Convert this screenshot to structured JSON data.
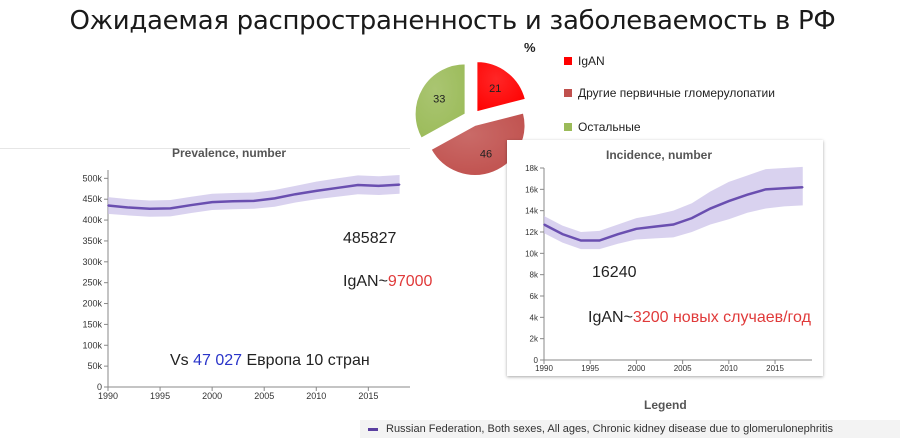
{
  "title": "Ожидаемая распространенность и заболеваемость  в РФ",
  "pie": {
    "unit_label": "%",
    "legend": [
      {
        "label": "IgAN",
        "color": "#ff0000"
      },
      {
        "label": "Другие первичные гломерулопатии",
        "color": "#c0504d"
      },
      {
        "label": "Остальные",
        "color": "#9bbb59"
      }
    ]
  },
  "annotations": {
    "prevalence_value": "485827",
    "prevalence_igan_prefix": "IgAN~",
    "prevalence_igan_value": "97000",
    "vs_prefix": "Vs ",
    "vs_value": "47 027",
    "vs_suffix": " Европа 10 стран",
    "incidence_value": "16240",
    "incidence_igan_prefix": "IgAN~",
    "incidence_igan_value": "3200 новых случаев/год"
  },
  "legend_bottom": {
    "title": "Legend",
    "series_label": "Russian Federation, Both sexes, All ages, Chronic kidney disease due to glomerulonephritis",
    "color": "#5a3fa0"
  },
  "chart_data": [
    {
      "type": "pie",
      "title": "%",
      "categories": [
        "IgAN",
        "Другие первичные гломерулопатии",
        "Остальные"
      ],
      "values": [
        21,
        46,
        33
      ],
      "colors": [
        "#ff0000",
        "#c0504d",
        "#9bbb59"
      ],
      "legend": "right"
    },
    {
      "type": "area",
      "title": "Prevalence, number",
      "x": [
        1990,
        1992,
        1994,
        1996,
        1998,
        2000,
        2002,
        2004,
        2006,
        2008,
        2010,
        2012,
        2014,
        2016,
        2018
      ],
      "y": [
        435000,
        430000,
        427000,
        428000,
        436000,
        443000,
        445000,
        446000,
        452000,
        462000,
        470000,
        477000,
        484000,
        482000,
        485000
      ],
      "upper": [
        455000,
        450000,
        447000,
        448000,
        456000,
        463000,
        465000,
        466000,
        472000,
        482000,
        492000,
        500000,
        507000,
        505000,
        508000
      ],
      "lower": [
        415000,
        411000,
        408000,
        409000,
        417000,
        424000,
        426000,
        427000,
        432000,
        442000,
        450000,
        456000,
        462000,
        460000,
        463000
      ],
      "xticks": [
        1990,
        1995,
        2000,
        2005,
        2010,
        2015
      ],
      "yticks": [
        0,
        50000,
        100000,
        150000,
        200000,
        250000,
        300000,
        350000,
        400000,
        450000,
        500000
      ],
      "ytick_labels": [
        "0",
        "50k",
        "100k",
        "150k",
        "200k",
        "250k",
        "300k",
        "350k",
        "400k",
        "450k",
        "500k"
      ],
      "xlim": [
        1990,
        2019
      ],
      "ylim": [
        0,
        520000
      ],
      "color": "#6a4fb0"
    },
    {
      "type": "area",
      "title": "Incidence, number",
      "x": [
        1990,
        1992,
        1994,
        1996,
        1998,
        2000,
        2002,
        2004,
        2006,
        2008,
        2010,
        2012,
        2014,
        2016,
        2018
      ],
      "y": [
        12700,
        11800,
        11200,
        11200,
        11800,
        12300,
        12500,
        12700,
        13300,
        14200,
        14900,
        15500,
        16000,
        16100,
        16200
      ],
      "upper": [
        13500,
        12600,
        12000,
        12100,
        12700,
        13300,
        13600,
        14000,
        14700,
        15800,
        16700,
        17300,
        17900,
        18000,
        18100
      ],
      "lower": [
        11900,
        11000,
        10400,
        10400,
        10900,
        11300,
        11400,
        11500,
        12000,
        12700,
        13200,
        13800,
        14200,
        14400,
        14500
      ],
      "xticks": [
        1990,
        1995,
        2000,
        2005,
        2010,
        2015
      ],
      "yticks": [
        0,
        2000,
        4000,
        6000,
        8000,
        10000,
        12000,
        14000,
        16000,
        18000
      ],
      "ytick_labels": [
        "0",
        "2k",
        "4k",
        "6k",
        "8k",
        "10k",
        "12k",
        "14k",
        "16k",
        "18k"
      ],
      "xlim": [
        1990,
        2019
      ],
      "ylim": [
        0,
        18000
      ],
      "color": "#6a4fb0"
    }
  ]
}
